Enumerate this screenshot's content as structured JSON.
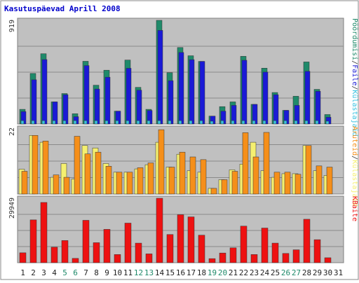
{
  "chart_data": {
    "title": "Kasutuspäevad Aprill 2008",
    "type": "bar",
    "categories": [
      "1",
      "2",
      "3",
      "4",
      "5",
      "6",
      "7",
      "8",
      "9",
      "10",
      "11",
      "12",
      "13",
      "14",
      "15",
      "16",
      "17",
      "18",
      "19",
      "20",
      "21",
      "22",
      "23",
      "24",
      "25",
      "26",
      "27",
      "28",
      "29",
      "30",
      "31"
    ],
    "weekend_days": [
      "5",
      "6",
      "12",
      "13",
      "19",
      "20",
      "26",
      "27"
    ],
    "panels": [
      {
        "id": "top",
        "max_label": "919",
        "ymax": 919,
        "series": [
          {
            "name": "Pöördumisi",
            "color": "#1f8a6a",
            "values": [
              130,
              448,
              623,
              196,
              270,
              91,
              556,
              344,
              477,
              114,
              567,
              325,
              130,
              919,
              455,
              678,
              605,
              555,
              70,
              154,
              196,
              600,
              174,
              495,
              279,
              121,
              246,
              550,
              307,
              84,
              0
            ]
          },
          {
            "name": "Faile",
            "color": "#1a1ad6",
            "values": [
              110,
              392,
              571,
              196,
              260,
              65,
              518,
              310,
              415,
              114,
              494,
              300,
              120,
              830,
              384,
              634,
              570,
              555,
              70,
              114,
              165,
              565,
              174,
              460,
              260,
              121,
              165,
              467,
              290,
              60,
              0
            ]
          },
          {
            "name": "Külastajaid",
            "color": "#36c2e0",
            "values": [
              30,
              30,
              30,
              30,
              30,
              30,
              30,
              30,
              30,
              30,
              30,
              30,
              30,
              30,
              30,
              30,
              30,
              30,
              25,
              30,
              30,
              30,
              30,
              30,
              30,
              30,
              30,
              30,
              30,
              25,
              0
            ]
          }
        ],
        "legend_labels": [
          "Pöördumisi",
          "/",
          "Faile",
          "/",
          "Külastajaid"
        ],
        "legend_colors": [
          "#1f8a6a",
          "#333333",
          "#1a1ad6",
          "#333333",
          "#36c2e0"
        ]
      },
      {
        "id": "mid",
        "max_label": "22",
        "ymax": 22,
        "series": [
          {
            "name": "Külastajaid",
            "color": "#f5f070",
            "values": [
              8.3,
              19.6,
              17.3,
              5.6,
              10.2,
              5.0,
              16.2,
              15.4,
              10.2,
              7.3,
              7.3,
              8.4,
              9.8,
              17.3,
              9.0,
              13.3,
              7.8,
              7.3,
              1.9,
              4.8,
              8.1,
              10.0,
              17.3,
              7.8,
              5.6,
              6.8,
              6.8,
              16.2,
              7.8,
              6.2,
              0
            ]
          },
          {
            "name": "Aruteid",
            "color": "#f58f1a",
            "values": [
              7.6,
              19.6,
              17.7,
              6.4,
              5.6,
              19.3,
              13.4,
              14.0,
              9.3,
              7.3,
              7.3,
              8.8,
              10.4,
              21.5,
              9.0,
              14.0,
              12.4,
              11.5,
              1.9,
              4.8,
              7.6,
              20.5,
              12.4,
              20.6,
              7.3,
              7.3,
              6.6,
              16.2,
              9.4,
              9.0,
              0
            ]
          }
        ],
        "legend_labels": [
          "Aruteid",
          "/",
          "Külastajaid"
        ],
        "legend_colors": [
          "#f58f1a",
          "#333333",
          "#f5f070"
        ]
      },
      {
        "id": "bot",
        "max_label": "29949",
        "ymax": 29949,
        "series": [
          {
            "name": "KBaite",
            "color": "#ee1111",
            "values": [
              4600,
              19900,
              28000,
              7200,
              10300,
              2000,
              19700,
              9300,
              15500,
              3800,
              18400,
              9100,
              4100,
              29949,
              13100,
              22300,
              21300,
              12800,
              1900,
              4500,
              6900,
              17000,
              3800,
              16100,
              9100,
              4300,
              6000,
              20200,
              10700,
              2300,
              0
            ]
          }
        ],
        "legend_labels": [
          "KBaite"
        ],
        "legend_colors": [
          "#ee1111"
        ]
      }
    ]
  }
}
